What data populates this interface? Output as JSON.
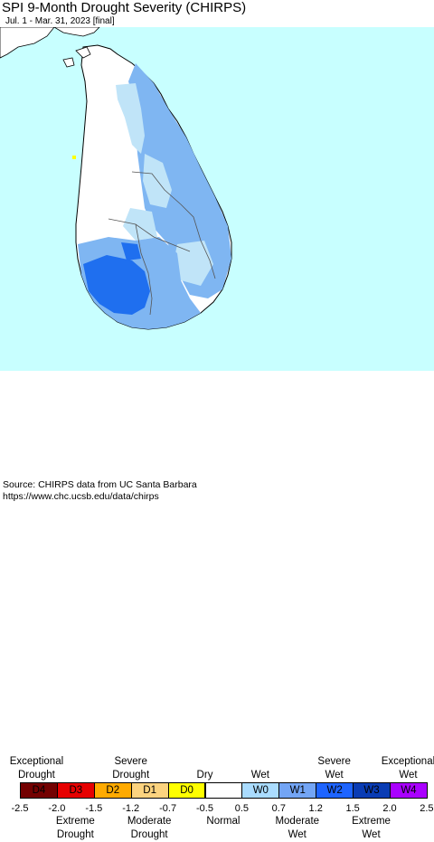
{
  "title": "SPI 9-Month Drought Severity (CHIRPS)",
  "subtitle": "Jul. 1 - Mar. 31, 2023 [final]",
  "colors": {
    "sea": "#c8ffff",
    "land_normal": "#ffffff",
    "w0": "#c0e4f8",
    "w1": "#7fb6f2",
    "w2": "#1f6fef",
    "d0": "#ffff00"
  },
  "legend": {
    "top_labels": [
      {
        "text": "Exceptional\nDrought"
      },
      {
        "text": "Severe\nDrought"
      },
      {
        "text": "Dry"
      },
      {
        "text": "Wet"
      },
      {
        "text": "Severe\nWet"
      },
      {
        "text": "Exceptional\nWet"
      }
    ],
    "categories": [
      {
        "label": "D4",
        "color": "#730000"
      },
      {
        "label": "D3",
        "color": "#e60000"
      },
      {
        "label": "D2",
        "color": "#ffaa00"
      },
      {
        "label": "D1",
        "color": "#fcd37f"
      },
      {
        "label": "D0",
        "color": "#ffff00"
      },
      {
        "label": "",
        "color": "#ffffff"
      },
      {
        "label": "W0",
        "color": "#aadcff"
      },
      {
        "label": "W1",
        "color": "#73a5f5"
      },
      {
        "label": "W2",
        "color": "#1e64ff"
      },
      {
        "label": "W3",
        "color": "#0a3cb4"
      },
      {
        "label": "W4",
        "color": "#aa00ff"
      }
    ],
    "ticks": [
      "-2.5",
      "-2.0",
      "-1.5",
      "-1.2",
      "-0.7",
      "-0.5",
      "0.5",
      "0.7",
      "1.2",
      "1.5",
      "2.0",
      "2.5"
    ],
    "bottom_labels": [
      {
        "text": "Extreme\nDrought"
      },
      {
        "text": "Moderate\nDrought"
      },
      {
        "text": "Normal"
      },
      {
        "text": "Moderate\nWet"
      },
      {
        "text": "Extreme\nWet"
      }
    ]
  },
  "source": {
    "line1": "Source: CHIRPS data from UC Santa Barbara",
    "line2": "https://www.chc.ucsb.edu/data/chirps"
  }
}
